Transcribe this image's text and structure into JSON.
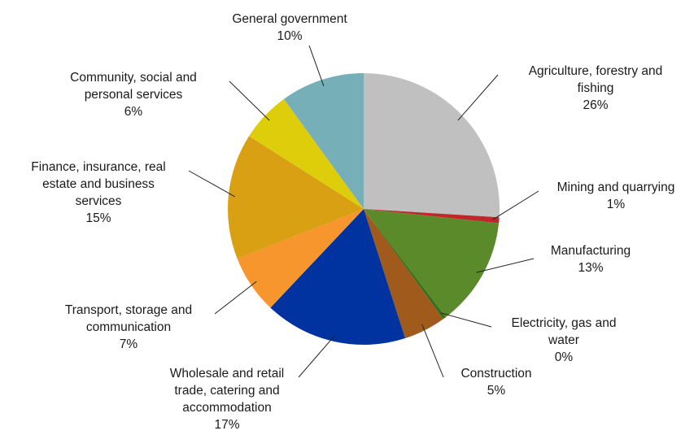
{
  "chart_data": {
    "type": "pie",
    "title": "",
    "slices": [
      {
        "name": "Agriculture, forestry and fishing",
        "label_lines": [
          "Agriculture, forestry and",
          "fishing"
        ],
        "value": 26,
        "pct_label": "26%",
        "color": "#c0c0c0"
      },
      {
        "name": "Mining and quarrying",
        "label_lines": [
          "Mining and quarrying"
        ],
        "value": 0.7,
        "pct_label": "1%",
        "color": "#c0262b"
      },
      {
        "name": "Manufacturing",
        "label_lines": [
          "Manufacturing"
        ],
        "value": 13,
        "pct_label": "13%",
        "color": "#5a8a2a"
      },
      {
        "name": "Electricity, gas and water",
        "label_lines": [
          "Electricity, gas and",
          "water"
        ],
        "value": 0.4,
        "pct_label": "0%",
        "color": "#3b6e1e"
      },
      {
        "name": "Construction",
        "label_lines": [
          "Construction"
        ],
        "value": 5,
        "pct_label": "5%",
        "color": "#a05a1c"
      },
      {
        "name": "Wholesale and retail trade, catering and accommodation",
        "label_lines": [
          "Wholesale and retail",
          "trade, catering and",
          "accommodation"
        ],
        "value": 17,
        "pct_label": "17%",
        "color": "#0033a0"
      },
      {
        "name": "Transport, storage and communication",
        "label_lines": [
          "Transport, storage and",
          "communication"
        ],
        "value": 7,
        "pct_label": "7%",
        "color": "#f7962c"
      },
      {
        "name": "Finance, insurance, real estate and business services",
        "label_lines": [
          "Finance, insurance, real",
          "estate and business",
          "services"
        ],
        "value": 15,
        "pct_label": "15%",
        "color": "#d8a012"
      },
      {
        "name": "Community, social  and personal services",
        "label_lines": [
          "Community, social  and",
          "personal services"
        ],
        "value": 6,
        "pct_label": "6%",
        "color": "#ddcd0a"
      },
      {
        "name": "General government",
        "label_lines": [
          "General government"
        ],
        "value": 10,
        "pct_label": "10%",
        "color": "#76afb8"
      }
    ]
  }
}
